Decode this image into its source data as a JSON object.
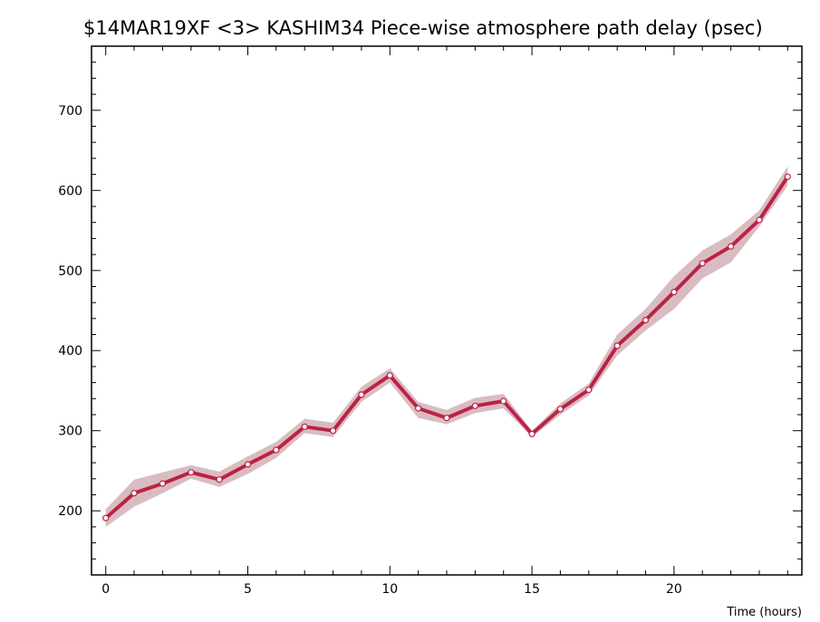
{
  "chart_data": {
    "type": "line",
    "title": "$14MAR19XF <3>  KASHIM34  Piece-wise atmosphere path delay (psec)",
    "xlabel": "Time (hours)",
    "ylabel": "",
    "xlim": [
      -0.5,
      24.5
    ],
    "ylim": [
      120,
      780
    ],
    "x_ticks": [
      0,
      5,
      10,
      15,
      20
    ],
    "y_ticks": [
      200,
      300,
      400,
      500,
      600,
      700
    ],
    "grid": false,
    "series": [
      {
        "x": [
          0,
          1,
          2,
          3,
          4,
          5,
          6,
          7,
          8,
          9,
          10,
          11,
          12,
          13,
          14,
          15,
          16,
          17,
          18,
          19,
          20,
          21,
          22,
          23,
          24
        ],
        "values": [
          191,
          222,
          234,
          248,
          239,
          258,
          276,
          305,
          300,
          345,
          369,
          328,
          316,
          331,
          337,
          296,
          327,
          351,
          406,
          438,
          473,
          509,
          530,
          563,
          617
        ],
        "band_low": [
          180,
          205,
          222,
          240,
          230,
          246,
          266,
          297,
          292,
          336,
          360,
          316,
          308,
          322,
          328,
          292,
          320,
          344,
          394,
          425,
          452,
          490,
          510,
          555,
          606
        ],
        "band_high": [
          202,
          239,
          248,
          257,
          249,
          268,
          286,
          315,
          310,
          355,
          378,
          336,
          326,
          341,
          346,
          300,
          334,
          359,
          420,
          452,
          493,
          525,
          545,
          575,
          630
        ]
      }
    ],
    "colors": {
      "line": "#bb2244",
      "band": "#d9bcc1",
      "marker_fill": "#ffffff",
      "axes": "#000000"
    }
  }
}
